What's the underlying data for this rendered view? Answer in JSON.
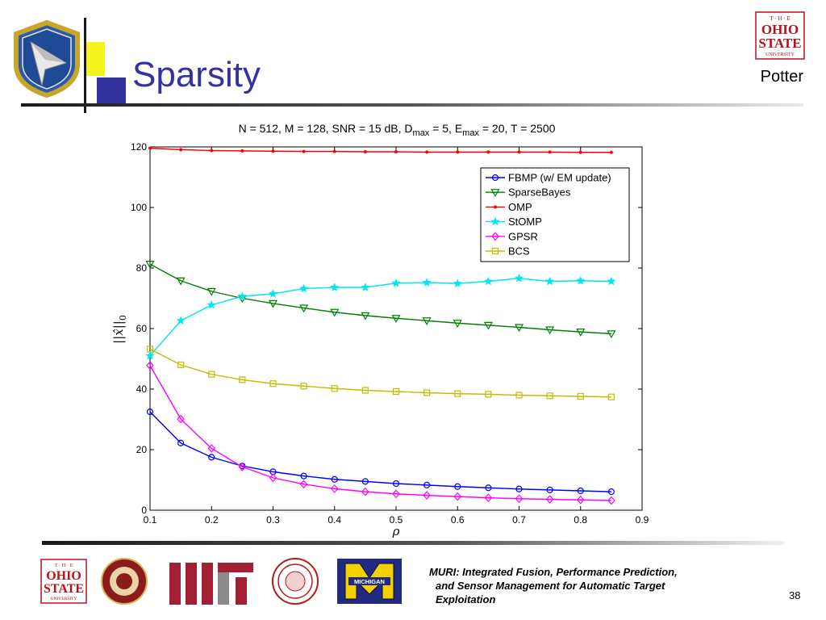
{
  "slide": {
    "title": "Sparsity",
    "author": "Potter",
    "footer_lines": [
      "MURI: Integrated Fusion, Performance Prediction,",
      "and Sensor Management for Automatic Target",
      "Exploitation"
    ],
    "page_number": "38",
    "logo_text": {
      "osu": [
        "T · H · E",
        "OHIO",
        "STATE",
        "UNIVERSITY"
      ],
      "michigan": "MICHIGAN"
    },
    "colors": {
      "title": "#3333a0",
      "accent_yellow": "#f4f31e",
      "accent_blue": "#3333a0",
      "osu_red": "#b5121b"
    }
  },
  "chart_data": {
    "type": "line",
    "title_parts": {
      "a": "N = 512, M = 128, SNR = 15 dB, D",
      "sub1": "max",
      "b": " = 5, E",
      "sub2": "max",
      "c": " = 20, T = 2500"
    },
    "xlabel": "ρ",
    "ylabel_parts": {
      "left": "||",
      "var": "x̂",
      "right": "||",
      "sub": "0"
    },
    "xlim": [
      0.1,
      0.9
    ],
    "ylim": [
      0,
      120
    ],
    "xticks": [
      "0.1",
      "0.2",
      "0.3",
      "0.4",
      "0.5",
      "0.6",
      "0.7",
      "0.8",
      "0.9"
    ],
    "yticks": [
      "0",
      "20",
      "40",
      "60",
      "80",
      "100",
      "120"
    ],
    "legend_position": "top-right",
    "grid": false,
    "x": [
      0.1,
      0.15,
      0.2,
      0.25,
      0.3,
      0.35,
      0.4,
      0.45,
      0.5,
      0.55,
      0.6,
      0.65,
      0.7,
      0.75,
      0.8,
      0.85
    ],
    "series": [
      {
        "name": "FBMP (w/ EM update)",
        "color": "#0000ff",
        "marker": "circle",
        "values": [
          32.5,
          22.2,
          17.5,
          14.6,
          12.7,
          11.3,
          10.2,
          9.5,
          8.8,
          8.3,
          7.8,
          7.4,
          7.0,
          6.7,
          6.4,
          6.1
        ]
      },
      {
        "name": "SparseBayes",
        "color": "#008000",
        "marker": "triangle-down",
        "values": [
          81.3,
          75.8,
          72.3,
          70.0,
          68.3,
          66.8,
          65.4,
          64.3,
          63.4,
          62.6,
          61.8,
          61.1,
          60.4,
          59.6,
          58.9,
          58.3
        ]
      },
      {
        "name": "OMP",
        "color": "#ff0000",
        "marker": "dot",
        "values": [
          119.6,
          119.1,
          118.8,
          118.7,
          118.6,
          118.5,
          118.5,
          118.4,
          118.4,
          118.3,
          118.3,
          118.3,
          118.3,
          118.3,
          118.2,
          118.2
        ]
      },
      {
        "name": "StOMP",
        "color": "#00e5ee",
        "marker": "star",
        "values": [
          51.0,
          62.6,
          67.8,
          70.6,
          71.5,
          73.2,
          73.6,
          73.6,
          75.0,
          75.2,
          74.9,
          75.6,
          76.6,
          75.6,
          75.8,
          75.6
        ]
      },
      {
        "name": "GPSR",
        "color": "#ff00ff",
        "marker": "diamond",
        "values": [
          47.8,
          30.1,
          20.4,
          14.3,
          10.7,
          8.6,
          7.1,
          6.1,
          5.4,
          4.9,
          4.5,
          4.1,
          3.8,
          3.6,
          3.4,
          3.2
        ]
      },
      {
        "name": "BCS",
        "color": "#bfbf00",
        "marker": "square",
        "values": [
          53.2,
          48.0,
          44.9,
          43.1,
          41.8,
          41.0,
          40.2,
          39.6,
          39.2,
          38.8,
          38.5,
          38.3,
          38.0,
          37.8,
          37.6,
          37.4
        ]
      }
    ]
  }
}
